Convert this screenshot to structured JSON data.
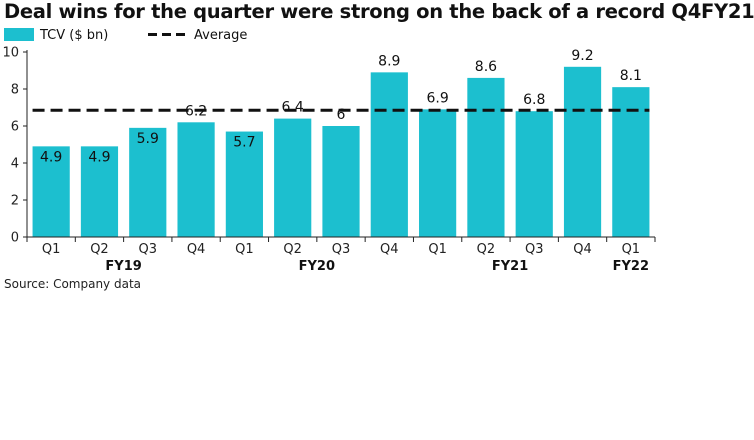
{
  "chart_data": {
    "type": "bar",
    "title": "Deal wins for the quarter were strong on the back of a record Q4FY21",
    "categories": [
      "Q1",
      "Q2",
      "Q3",
      "Q4",
      "Q1",
      "Q2",
      "Q3",
      "Q4",
      "Q1",
      "Q2",
      "Q3",
      "Q4",
      "Q1"
    ],
    "groups": [
      {
        "label": "FY19",
        "start": 0,
        "end": 3
      },
      {
        "label": "FY20",
        "start": 4,
        "end": 7
      },
      {
        "label": "FY21",
        "start": 8,
        "end": 11
      },
      {
        "label": "FY22",
        "start": 12,
        "end": 12
      }
    ],
    "series": [
      {
        "name": "TCV ($ bn)",
        "values": [
          4.9,
          4.9,
          5.9,
          6.2,
          5.7,
          6.4,
          6,
          8.9,
          6.9,
          8.6,
          6.8,
          9.2,
          8.1
        ],
        "data_labels": [
          "4.9",
          "4.9",
          "5.9",
          "6.2",
          "5.7",
          "6.4",
          "6",
          "8.9",
          "6.9",
          "8.6",
          "6.8",
          "9.2",
          "8.1"
        ]
      }
    ],
    "reference_line": {
      "name": "Average",
      "value": 6.85
    },
    "ylim": [
      0,
      10
    ],
    "yticks": [
      0,
      2,
      4,
      6,
      8,
      10
    ],
    "xlabel": "",
    "ylabel": "",
    "grid": false,
    "legend": "top-left",
    "colors": {
      "bar": "#1cbfcf",
      "average": "#111111",
      "axis": "#222222"
    }
  },
  "source": "Source: Company data"
}
